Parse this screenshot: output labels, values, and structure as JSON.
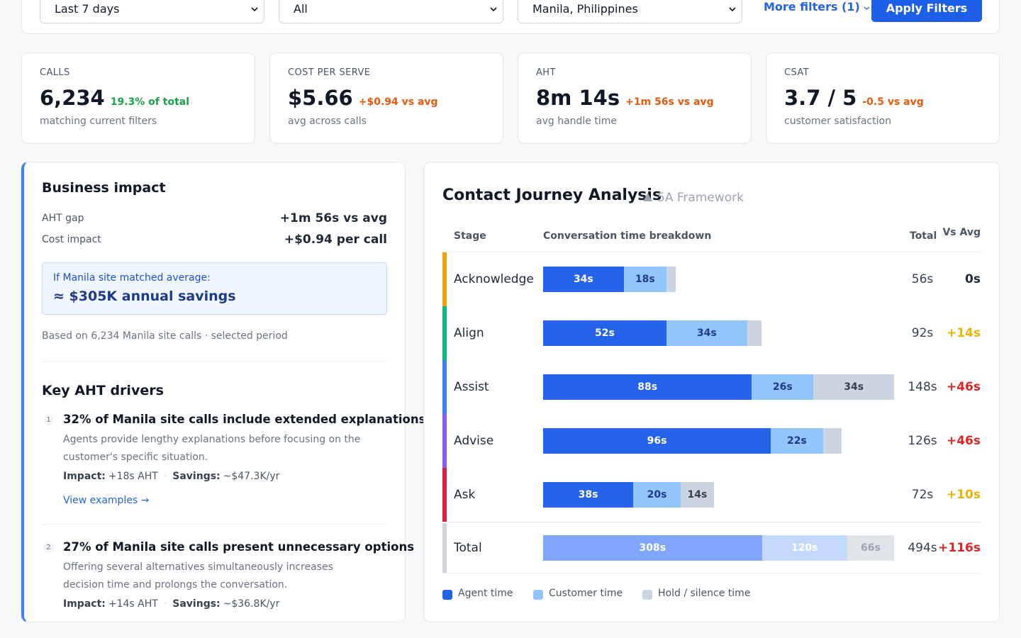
{
  "filters": {
    "period": "Last 7 days",
    "channel": "All",
    "site": "Manila, Philippines",
    "more": "More filters (1)",
    "apply": "Apply Filters"
  },
  "kpis": [
    {
      "label": "CALLS",
      "value": "6,234",
      "delta": "19.3% of total",
      "delta_color": "#16a34a",
      "note": "matching current filters"
    },
    {
      "label": "COST PER SERVE",
      "value": "$5.66",
      "delta": "+$0.94 vs avg",
      "delta_color": "#ea580c",
      "note": "avg across calls"
    },
    {
      "label": "AHT",
      "value": "8m 14s",
      "delta": "+1m 56s vs avg",
      "delta_color": "#ea580c",
      "note": "avg handle time"
    },
    {
      "label": "CSAT",
      "value": "3.7 / 5",
      "delta": "-0.5 vs avg",
      "delta_color": "#ea580c",
      "note": "customer satisfaction"
    }
  ],
  "impact": {
    "title": "Business impact",
    "rows": [
      {
        "label": "AHT gap",
        "value": "+1m 56s vs avg"
      },
      {
        "label": "Cost impact",
        "value": "+$0.94 per call"
      }
    ],
    "callout": {
      "lead": "If Manila site matched average:",
      "value": "≈ $305K annual savings"
    },
    "note": "Based on 6,234 Manila site calls · selected period"
  },
  "drivers": {
    "title": "Key AHT drivers",
    "items": [
      {
        "number": "1",
        "title": "32% of Manila site calls include extended explanations",
        "description": "Agents provide lengthy explanations before focusing on the customer's specific situation.",
        "impact_label": "Impact:",
        "impact": "+18s AHT",
        "savings_label": "Savings:",
        "savings": "~$47.3K/yr",
        "link": "View examples →"
      },
      {
        "number": "2",
        "title": "27% of Manila site calls present unnecessary options",
        "description": "Offering several alternatives simultaneously increases decision time and prolongs the conversation.",
        "impact_label": "Impact:",
        "impact": "+14s AHT",
        "savings_label": "Savings:",
        "savings": "~$36.8K/yr"
      }
    ]
  },
  "journey": {
    "title": "Contact Journey Analysis",
    "subtitle": "5A Framework",
    "columns": [
      "Stage",
      "Conversation time breakdown",
      "Total",
      "Vs Avg"
    ],
    "segment_colors": [
      "#2563eb",
      "#93c5fd",
      "#cbd5e1"
    ],
    "segment_text_colors": [
      "#ffffff",
      "#1e3a8a",
      "#374151"
    ],
    "total_colors": [
      "#7fa6fb",
      "#c5d8fd",
      "#e1e4e9"
    ],
    "total_text_colors": [
      "#ffffff",
      "#ffffff",
      "#9ca3af"
    ],
    "stages": [
      {
        "stage": "Acknowledge",
        "color": "#f59e0b",
        "values": [
          34,
          18,
          4
        ],
        "value_labels": [
          "34s",
          "18s",
          null
        ],
        "total": "56s",
        "vs_avg": "0s",
        "vs_color": "#1f2937"
      },
      {
        "stage": "Align",
        "color": "#10b981",
        "values": [
          52,
          34,
          6
        ],
        "value_labels": [
          "52s",
          "34s",
          null
        ],
        "total": "92s",
        "vs_avg": "+14s",
        "vs_color": "#eab308"
      },
      {
        "stage": "Assist",
        "color": "#3b82f6",
        "values": [
          88,
          26,
          34
        ],
        "value_labels": [
          "88s",
          "26s",
          "34s"
        ],
        "total": "148s",
        "vs_avg": "+46s",
        "vs_color": "#dc2626"
      },
      {
        "stage": "Advise",
        "color": "#8b5cf6",
        "values": [
          96,
          22,
          8
        ],
        "value_labels": [
          "96s",
          "22s",
          null
        ],
        "total": "126s",
        "vs_avg": "+46s",
        "vs_color": "#dc2626"
      },
      {
        "stage": "Ask",
        "color": "#e11d48",
        "values": [
          38,
          20,
          14
        ],
        "value_labels": [
          "38s",
          "20s",
          "14s"
        ],
        "total": "72s",
        "vs_avg": "+10s",
        "vs_color": "#eab308"
      }
    ],
    "summary": {
      "stage": "Total",
      "color": "#d1d5db",
      "values": [
        308,
        120,
        66
      ],
      "value_labels": [
        "308s",
        "120s",
        "66s"
      ],
      "total": "494s",
      "vs_avg": "+116s",
      "vs_color": "#dc2626"
    },
    "legend": [
      "Agent time",
      "Customer time",
      "Hold / silence time"
    ]
  }
}
